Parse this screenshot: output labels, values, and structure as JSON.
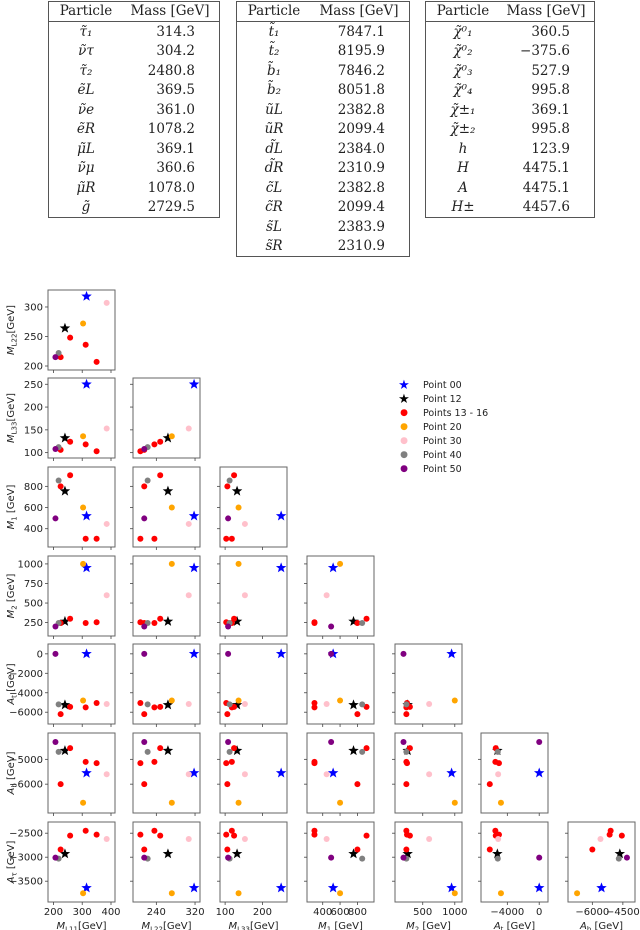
{
  "tables": [
    {
      "headers": [
        "Particle",
        "Mass [GeV]"
      ],
      "rows": [
        {
          "particle": "τ̃₁",
          "mass": "314.3"
        },
        {
          "particle": "ν̃τ",
          "mass": "304.2"
        },
        {
          "particle": "τ̃₂",
          "mass": "2480.8"
        },
        {
          "particle": "ẽL",
          "mass": "369.5"
        },
        {
          "particle": "ν̃e",
          "mass": "361.0"
        },
        {
          "particle": "ẽR",
          "mass": "1078.2"
        },
        {
          "particle": "μ̃L",
          "mass": "369.1"
        },
        {
          "particle": "ν̃μ",
          "mass": "360.6"
        },
        {
          "particle": "μ̃R",
          "mass": "1078.0"
        },
        {
          "particle": "g̃",
          "mass": "2729.5"
        }
      ]
    },
    {
      "headers": [
        "Particle",
        "Mass [GeV]"
      ],
      "rows": [
        {
          "particle": "t̃₁",
          "mass": "7847.1"
        },
        {
          "particle": "t̃₂",
          "mass": "8195.9"
        },
        {
          "particle": "b̃₁",
          "mass": "7846.2"
        },
        {
          "particle": "b̃₂",
          "mass": "8051.8"
        },
        {
          "particle": "ũL",
          "mass": "2382.8"
        },
        {
          "particle": "ũR",
          "mass": "2099.4"
        },
        {
          "particle": "d̃L",
          "mass": "2384.0"
        },
        {
          "particle": "d̃R",
          "mass": "2310.9"
        },
        {
          "particle": "c̃L",
          "mass": "2382.8"
        },
        {
          "particle": "c̃R",
          "mass": "2099.4"
        },
        {
          "particle": "s̃L",
          "mass": "2383.9"
        },
        {
          "particle": "s̃R",
          "mass": "2310.9"
        }
      ]
    },
    {
      "headers": [
        "Particle",
        "Mass [GeV]"
      ],
      "rows": [
        {
          "particle": "χ̃⁰₁",
          "mass": "360.5"
        },
        {
          "particle": "χ̃⁰₂",
          "mass": "−375.6"
        },
        {
          "particle": "χ̃⁰₃",
          "mass": "527.9"
        },
        {
          "particle": "χ̃⁰₄",
          "mass": "995.8"
        },
        {
          "particle": "χ̃±₁",
          "mass": "369.1"
        },
        {
          "particle": "χ̃±₂",
          "mass": "995.8"
        },
        {
          "particle": "h",
          "mass": "123.9"
        },
        {
          "particle": "H",
          "mass": "4475.1"
        },
        {
          "particle": "A",
          "mass": "4475.1"
        },
        {
          "particle": "H±",
          "mass": "4457.6"
        }
      ]
    }
  ],
  "legend": [
    {
      "label": "Point 00",
      "marker": "star",
      "color": "#0000ff"
    },
    {
      "label": "Point 12",
      "marker": "star",
      "color": "#000000"
    },
    {
      "label": "Points 13 - 16",
      "marker": "dot",
      "color": "#ff0000"
    },
    {
      "label": "Point 20",
      "marker": "dot",
      "color": "#ffa500"
    },
    {
      "label": "Point 30",
      "marker": "dot",
      "color": "#ffc0cb"
    },
    {
      "label": "Point 40",
      "marker": "dot",
      "color": "#808080"
    },
    {
      "label": "Point 50",
      "marker": "dot",
      "color": "#800080"
    }
  ],
  "chart_data": {
    "type": "scatter",
    "title": "",
    "layout": "corner plot (lower triangle pair plot)",
    "variables": [
      {
        "key": "ML11",
        "label": "M_L11 [GeV]",
        "range": [
          195,
          400
        ],
        "ticks": [
          200,
          300,
          400
        ]
      },
      {
        "key": "ML22",
        "label": "M_L22 [GeV]",
        "range": [
          200,
          322
        ],
        "ticks": [
          200,
          250,
          300
        ],
        "xticks": [
          240,
          320
        ]
      },
      {
        "key": "ML33",
        "label": "M_L33 [GeV]",
        "range": [
          97,
          255
        ],
        "ticks": [
          100,
          150,
          200,
          250
        ],
        "xticks": [
          100,
          200
        ]
      },
      {
        "key": "M1",
        "label": "M_1 [GeV]",
        "range": [
          265,
          945
        ],
        "ticks": [
          400,
          600,
          800
        ]
      },
      {
        "key": "M2",
        "label": "M_2 [GeV]",
        "range": [
          130,
          1050
        ],
        "ticks": [
          250,
          500,
          750,
          1000
        ],
        "xticks": [
          500,
          1000
        ]
      },
      {
        "key": "At",
        "label": "A_t [GeV]",
        "range": [
          -6800,
          600
        ],
        "ticks": [
          -6000,
          -4000,
          -2000,
          0
        ],
        "xticks": [
          -4000,
          0
        ]
      },
      {
        "key": "Ab",
        "label": "A_b [GeV]",
        "range": [
          -7000,
          -4100
        ],
        "ticks": [
          -6000,
          -5000
        ],
        "xticks": [
          -6000,
          -4500
        ]
      },
      {
        "key": "Atau",
        "label": "A_τ [GeV]",
        "range": [
          -3850,
          -2350
        ],
        "ticks": [
          -3500,
          -3000,
          -2500
        ]
      }
    ],
    "series": [
      {
        "name": "Point 00",
        "marker": "star",
        "color": "#0000ff",
        "points": [
          {
            "ML11": 315,
            "ML22": 318,
            "ML33": 250,
            "M1": 520,
            "M2": 950,
            "At": 0,
            "Ab": -5550,
            "Atau": -3640
          }
        ]
      },
      {
        "name": "Point 12",
        "marker": "star",
        "color": "#000000",
        "points": [
          {
            "ML11": 240,
            "ML22": 264,
            "ML33": 132,
            "M1": 755,
            "M2": 265,
            "At": -5250,
            "Ab": -4650,
            "Atau": -2930
          }
        ]
      },
      {
        "name": "Points 13 - 16",
        "marker": "dot",
        "color": "#ff0000",
        "points": [
          {
            "ML11": 225,
            "ML22": 215,
            "ML33": 106,
            "M1": 800,
            "M2": 245,
            "At": -6200,
            "Ab": -6000,
            "Atau": -2840
          },
          {
            "ML11": 258,
            "ML22": 248,
            "ML33": 124,
            "M1": 905,
            "M2": 300,
            "At": -5450,
            "Ab": -4550,
            "Atau": -2550
          },
          {
            "ML11": 312,
            "ML22": 236,
            "ML33": 118,
            "M1": 305,
            "M2": 245,
            "At": -5500,
            "Ab": -5100,
            "Atau": -2450
          },
          {
            "ML11": 350,
            "ML22": 207,
            "ML33": 103,
            "M1": 305,
            "M2": 255,
            "At": -5050,
            "Ab": -5150,
            "Atau": -2530
          }
        ]
      },
      {
        "name": "Point 20",
        "marker": "dot",
        "color": "#ffa500",
        "points": [
          {
            "ML11": 303,
            "ML22": 272,
            "ML33": 136,
            "M1": 600,
            "M2": 1000,
            "At": -4800,
            "Ab": -6750,
            "Atau": -3750
          }
        ]
      },
      {
        "name": "Point 30",
        "marker": "dot",
        "color": "#ffc0cb",
        "points": [
          {
            "ML11": 385,
            "ML22": 307,
            "ML33": 153,
            "M1": 445,
            "M2": 600,
            "At": -5150,
            "Ab": -5600,
            "Atau": -2620
          }
        ]
      },
      {
        "name": "Point 40",
        "marker": "dot",
        "color": "#808080",
        "points": [
          {
            "ML11": 218,
            "ML22": 222,
            "ML33": 112,
            "M1": 855,
            "M2": 245,
            "At": -5200,
            "Ab": -4700,
            "Atau": -3030
          }
        ]
      },
      {
        "name": "Point 50",
        "marker": "dot",
        "color": "#800080",
        "points": [
          {
            "ML11": 207,
            "ML22": 215,
            "ML33": 108,
            "M1": 497,
            "M2": 200,
            "At": 0,
            "Ab": -4300,
            "Atau": -3010
          }
        ]
      }
    ]
  }
}
